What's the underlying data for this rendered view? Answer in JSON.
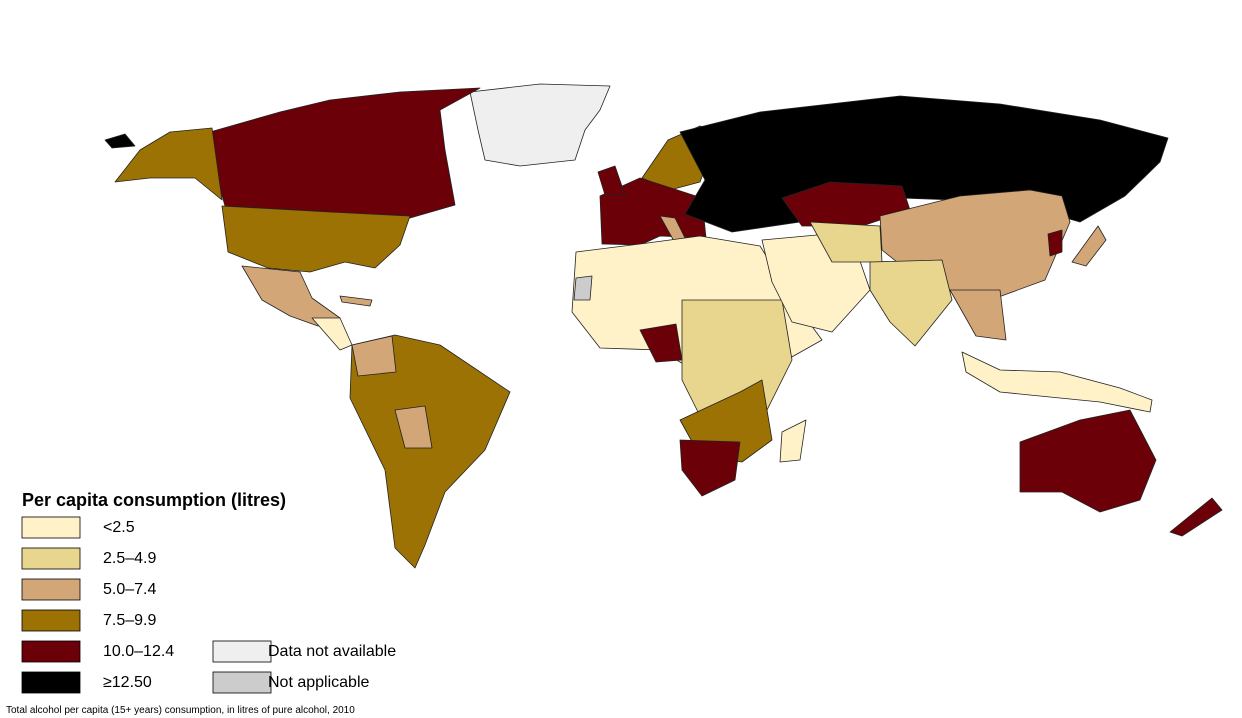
{
  "legend": {
    "title": "Per capita consumption (litres)",
    "items": [
      {
        "label": "<2.5",
        "color": "#fff2c8"
      },
      {
        "label": "2.5–4.9",
        "color": "#e8d58e"
      },
      {
        "label": "5.0–7.4",
        "color": "#d3a678"
      },
      {
        "label": "7.5–9.9",
        "color": "#9b7203"
      },
      {
        "label": "10.0–12.4",
        "color": "#6b0008"
      },
      {
        "label": "≥12.50",
        "color": "#000000"
      },
      {
        "label": "Data not available",
        "color": "#efefef"
      },
      {
        "label": "Not applicable",
        "color": "#cccccc"
      }
    ]
  },
  "footnote": "Total alcohol per capita (15+ years) consumption, in litres of pure alcohol, 2010"
}
